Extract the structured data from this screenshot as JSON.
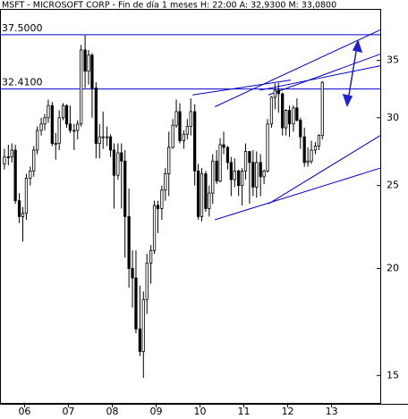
{
  "chart_data": {
    "type": "candlestick",
    "title": "MSFT - MICROSOFT CORP - Fin de día 1 meses  H: 22:00  A: 32,9300  M: 33,0800",
    "log_scale": true,
    "up_color": "#ffffff",
    "down_color": "#000000",
    "line_color": "#0000cc",
    "xlim": [
      2005.94,
      2014.61
    ],
    "xticks": [
      {
        "value": 2006.5,
        "label": "06"
      },
      {
        "value": 2007.5,
        "label": "07"
      },
      {
        "value": 2008.5,
        "label": "08"
      },
      {
        "value": 2009.5,
        "label": "09"
      },
      {
        "value": 2010.5,
        "label": "10"
      },
      {
        "value": 2011.5,
        "label": "11"
      },
      {
        "value": 2012.5,
        "label": "12"
      },
      {
        "value": 2013.5,
        "label": "13"
      }
    ],
    "ylim": [
      13.9,
      40.2
    ],
    "yticks": [
      15,
      20,
      25,
      30,
      35
    ],
    "hlines": [
      {
        "value": 37.5,
        "label": "37.5000"
      },
      {
        "value": 32.41,
        "label": "32.4100"
      }
    ],
    "trendlines": [
      {
        "x": [
          2010.84,
          2014.61
        ],
        "y": [
          22.8,
          26.2
        ]
      },
      {
        "x": [
          2012.06,
          2014.61
        ],
        "y": [
          23.8,
          28.6
        ]
      },
      {
        "x": [
          2010.33,
          2012.57
        ],
        "y": [
          31.9,
          33.2
        ]
      },
      {
        "x": [
          2010.84,
          2014.61
        ],
        "y": [
          30.9,
          38.0
        ]
      },
      {
        "x": [
          2012.06,
          2014.61
        ],
        "y": [
          31.9,
          35.6
        ]
      },
      {
        "x": [
          2011.86,
          2014.61
        ],
        "y": [
          32.3,
          34.5
        ]
      }
    ],
    "x": [
      2006.04,
      2006.13,
      2006.21,
      2006.29,
      2006.38,
      2006.46,
      2006.54,
      2006.63,
      2006.71,
      2006.79,
      2006.88,
      2006.96,
      2007.04,
      2007.13,
      2007.21,
      2007.29,
      2007.38,
      2007.46,
      2007.54,
      2007.63,
      2007.71,
      2007.79,
      2007.88,
      2007.96,
      2008.04,
      2008.13,
      2008.21,
      2008.29,
      2008.38,
      2008.46,
      2008.54,
      2008.63,
      2008.71,
      2008.79,
      2008.88,
      2008.96,
      2009.04,
      2009.13,
      2009.21,
      2009.29,
      2009.38,
      2009.46,
      2009.54,
      2009.63,
      2009.71,
      2009.79,
      2009.88,
      2009.96,
      2010.04,
      2010.13,
      2010.21,
      2010.29,
      2010.38,
      2010.46,
      2010.54,
      2010.63,
      2010.71,
      2010.79,
      2010.88,
      2010.96,
      2011.04,
      2011.13,
      2011.21,
      2011.29,
      2011.38,
      2011.46,
      2011.54,
      2011.63,
      2011.71,
      2011.79,
      2011.88,
      2011.96,
      2012.04,
      2012.13,
      2012.21,
      2012.29,
      2012.38,
      2012.46,
      2012.54,
      2012.63,
      2012.71,
      2012.79,
      2012.88,
      2012.96,
      2013.04,
      2013.13,
      2013.21,
      2013.29
    ],
    "open": [
      26.5,
      27.0,
      27.0,
      27.5,
      24.0,
      23.0,
      23.2,
      25.5,
      26.0,
      27.5,
      29.0,
      29.5,
      30.0,
      31.0,
      28.0,
      28.0,
      30.0,
      31.0,
      29.5,
      29.0,
      29.0,
      29.5,
      36.0,
      34.0,
      35.5,
      32.5,
      28.0,
      28.5,
      28.5,
      28.5,
      27.5,
      25.7,
      27.3,
      26.7,
      23.0,
      20.0,
      19.5,
      17.0,
      16.0,
      18.4,
      20.3,
      21.0,
      23.7,
      23.5,
      24.7,
      25.8,
      27.7,
      29.4,
      30.5,
      28.2,
      28.7,
      29.3,
      30.5,
      26.0,
      23.0,
      25.8,
      23.5,
      24.5,
      26.7,
      25.3,
      27.9,
      27.7,
      26.6,
      25.4,
      26.0,
      25.0,
      26.0,
      27.4,
      26.6,
      24.9,
      26.6,
      25.6,
      26.0,
      29.5,
      31.7,
      32.3,
      32.0,
      29.2,
      30.6,
      29.5,
      30.8,
      29.8,
      28.5,
      26.6,
      26.7,
      27.5,
      27.8,
      28.6
    ],
    "high": [
      27.6,
      27.9,
      28.0,
      27.9,
      24.5,
      23.6,
      25.8,
      26.3,
      27.8,
      29.3,
      30.0,
      30.3,
      31.5,
      31.3,
      28.8,
      30.6,
      31.2,
      31.1,
      31.0,
      29.5,
      29.8,
      36.5,
      37.5,
      36.0,
      35.7,
      33.0,
      29.5,
      30.5,
      29.3,
      28.7,
      28.0,
      28.0,
      28.0,
      27.5,
      24.8,
      21.0,
      21.0,
      19.1,
      18.8,
      20.8,
      21.3,
      24.0,
      24.0,
      25.0,
      26.2,
      28.9,
      29.9,
      31.5,
      31.2,
      29.0,
      29.9,
      31.6,
      31.1,
      26.5,
      26.2,
      26.0,
      25.0,
      27.2,
      27.5,
      28.4,
      28.9,
      27.8,
      27.0,
      26.9,
      26.1,
      26.2,
      28.0,
      27.4,
      27.5,
      27.4,
      27.2,
      26.1,
      29.9,
      31.8,
      32.9,
      32.95,
      32.1,
      30.7,
      31.0,
      31.0,
      31.6,
      30.0,
      29.2,
      27.7,
      28.2,
      28.1,
      28.7,
      33.1
    ],
    "low": [
      26.1,
      26.4,
      26.6,
      23.8,
      22.6,
      21.5,
      22.8,
      25.0,
      25.6,
      27.2,
      28.6,
      29.0,
      29.6,
      27.8,
      26.8,
      27.5,
      29.8,
      29.2,
      28.8,
      27.5,
      28.3,
      29.3,
      32.5,
      32.8,
      30.0,
      26.9,
      26.9,
      27.6,
      27.8,
      27.0,
      23.5,
      25.4,
      23.5,
      20.6,
      19.0,
      18.0,
      16.8,
      15.8,
      14.9,
      17.7,
      19.2,
      20.8,
      22.0,
      22.8,
      24.0,
      24.3,
      27.6,
      29.2,
      28.0,
      27.6,
      28.3,
      28.6,
      25.0,
      22.8,
      22.7,
      23.3,
      23.0,
      23.8,
      25.1,
      25.2,
      27.2,
      26.1,
      24.3,
      24.9,
      24.3,
      23.7,
      25.4,
      23.8,
      24.3,
      24.2,
      24.3,
      25.1,
      25.9,
      29.2,
      30.7,
      30.4,
      28.6,
      28.6,
      28.5,
      28.9,
      29.7,
      27.6,
      26.3,
      26.3,
      26.5,
      27.2,
      27.5,
      28.3
    ],
    "close": [
      27.0,
      27.0,
      27.5,
      24.0,
      23.0,
      23.2,
      25.5,
      26.0,
      27.5,
      29.0,
      29.5,
      30.0,
      31.0,
      28.0,
      28.0,
      30.0,
      31.0,
      29.5,
      29.0,
      29.0,
      29.5,
      36.0,
      34.0,
      35.5,
      32.5,
      28.0,
      28.5,
      28.5,
      28.5,
      27.5,
      25.7,
      27.3,
      26.7,
      23.0,
      20.0,
      19.5,
      17.0,
      16.0,
      18.4,
      20.3,
      21.0,
      23.7,
      23.5,
      24.7,
      25.8,
      27.7,
      29.4,
      30.5,
      28.2,
      28.7,
      29.3,
      30.5,
      26.0,
      23.0,
      25.8,
      23.5,
      24.5,
      26.7,
      25.3,
      27.9,
      27.7,
      26.6,
      25.4,
      26.0,
      25.0,
      26.0,
      27.4,
      26.6,
      24.9,
      26.6,
      25.6,
      26.0,
      29.5,
      31.7,
      32.3,
      32.0,
      29.2,
      30.6,
      29.5,
      30.8,
      29.8,
      28.5,
      26.6,
      26.7,
      27.5,
      27.8,
      28.6,
      33.0
    ]
  }
}
